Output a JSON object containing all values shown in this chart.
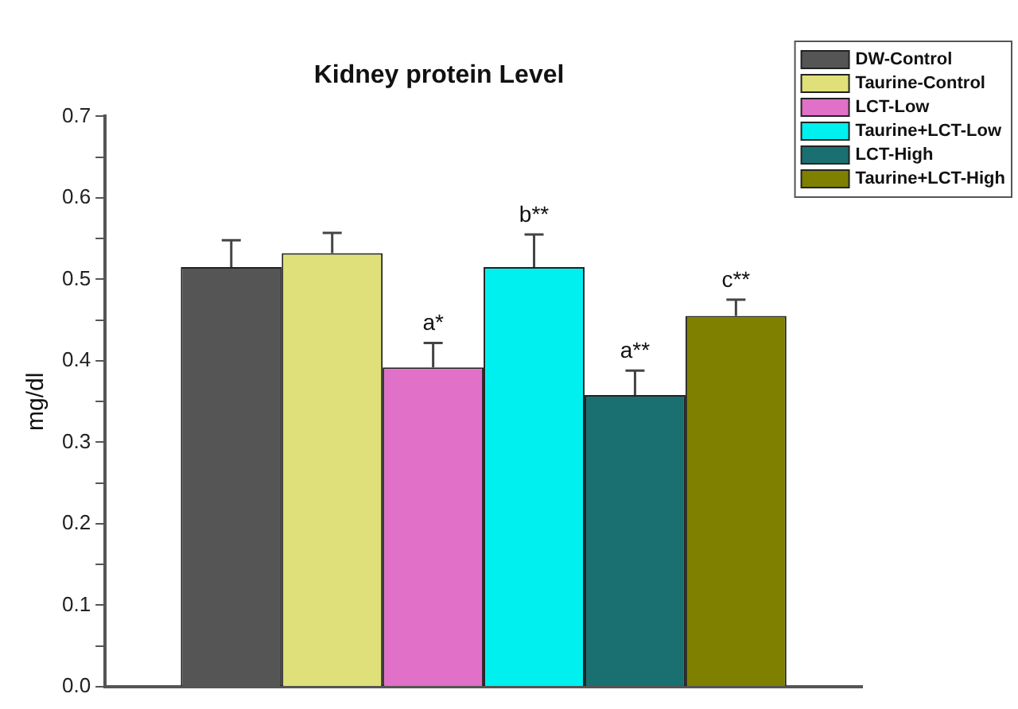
{
  "chart_data": {
    "type": "bar",
    "title": "Kidney protein Level",
    "ylabel": "mg/dl",
    "categories": [
      null
    ],
    "series": [
      {
        "name": "DW-Control",
        "color": "#555555",
        "values": [
          0.515
        ],
        "errors": [
          0.033
        ]
      },
      {
        "name": "Taurine-Control",
        "color": "#e0e07a",
        "values": [
          0.532
        ],
        "errors": [
          0.025
        ]
      },
      {
        "name": "LCT-Low",
        "color": "#e070c8",
        "values": [
          0.392
        ],
        "errors": [
          0.03
        ],
        "value_labels": [
          "a*"
        ]
      },
      {
        "name": "Taurine+LCT-Low",
        "color": "#00f0f0",
        "values": [
          0.515
        ],
        "errors": [
          0.04
        ],
        "value_labels": [
          "b**"
        ]
      },
      {
        "name": "LCT-High",
        "color": "#1a7070",
        "values": [
          0.358
        ],
        "errors": [
          0.03
        ],
        "value_labels": [
          "a**"
        ]
      },
      {
        "name": "Taurine+LCT-High",
        "color": "#808000",
        "values": [
          0.455
        ],
        "errors": [
          0.02
        ],
        "value_labels": [
          "c**"
        ]
      }
    ],
    "ylim": [
      0,
      0.7
    ],
    "yticks": [
      "0.0",
      {
        "value": 0.05,
        "label": null
      },
      {
        "value": 0.1,
        "label": "0.1"
      },
      {
        "value": 0.15,
        "label": null
      },
      {
        "value": 0.2,
        "label": "0.2"
      },
      {
        "value": 0.25,
        "label": null
      },
      {
        "value": 0.3,
        "label": "0.3"
      },
      {
        "value": 0.35,
        "label": null
      },
      {
        "value": 0.4,
        "label": "0.4"
      },
      {
        "value": 0.45,
        "label": null
      },
      {
        "value": 0.5,
        "label": "0.5"
      },
      {
        "value": 0.55,
        "label": null
      },
      {
        "value": 0.6,
        "label": "0.6"
      },
      {
        "value": 0.65,
        "label": null
      },
      {
        "value": 0.7,
        "label": "0.7"
      }
    ],
    "grid": false,
    "legend": "top right",
    "tick_labels": "y"
  }
}
